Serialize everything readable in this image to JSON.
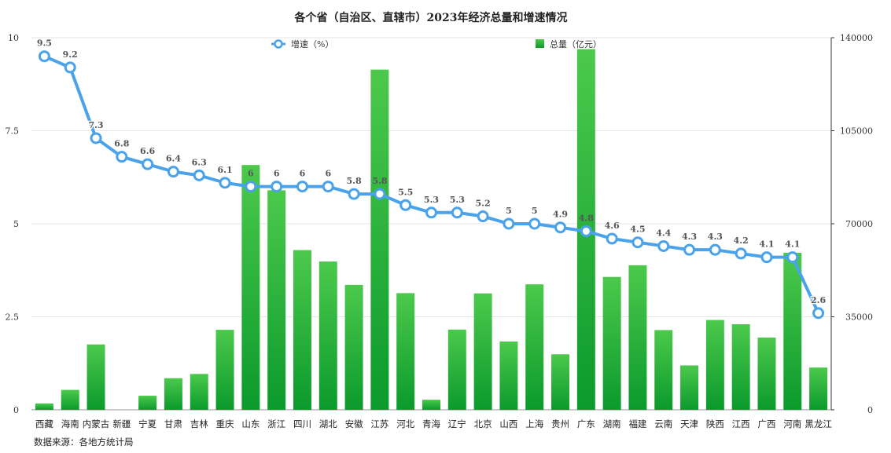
{
  "chart_data": {
    "type": "bar",
    "title": "各个省（自治区、直辖市）2023年经济总量和增速情况",
    "source": "数据来源：各地方统计局",
    "categories": [
      "西藏",
      "海南",
      "内蒙古",
      "新疆",
      "宁夏",
      "甘肃",
      "吉林",
      "重庆",
      "山东",
      "浙江",
      "四川",
      "湖北",
      "安徽",
      "江苏",
      "河北",
      "青海",
      "辽宁",
      "北京",
      "山西",
      "上海",
      "贵州",
      "广东",
      "湖南",
      "福建",
      "云南",
      "天津",
      "陕西",
      "江西",
      "广西",
      "河南",
      "黑龙江"
    ],
    "series": [
      {
        "name": "总量（亿元）",
        "type": "bar",
        "axis": "right",
        "values": [
          2400,
          7500,
          24600,
          0,
          5300,
          11900,
          13500,
          30100,
          92100,
          82600,
          60100,
          55800,
          47000,
          128000,
          43900,
          3800,
          30200,
          43800,
          25700,
          47200,
          20900,
          135700,
          50000,
          54400,
          30000,
          16700,
          33800,
          32200,
          27200,
          59100,
          15900
        ]
      },
      {
        "name": "增速（%）",
        "type": "line",
        "axis": "left",
        "values": [
          9.5,
          9.2,
          7.3,
          6.8,
          6.6,
          6.4,
          6.3,
          6.1,
          6,
          6,
          6,
          6,
          5.8,
          5.8,
          5.5,
          5.3,
          5.3,
          5.2,
          5,
          5,
          4.9,
          4.8,
          4.6,
          4.5,
          4.4,
          4.3,
          4.3,
          4.2,
          4.1,
          4.1,
          2.6
        ]
      }
    ],
    "y_left": {
      "ylim": [
        0,
        10
      ],
      "ticks": [
        "0",
        "2.5",
        "5",
        "7.5",
        "10"
      ]
    },
    "y_right": {
      "ylim": [
        0,
        140000
      ],
      "ticks": [
        "0",
        "35000",
        "70000",
        "105000",
        "140000"
      ]
    },
    "legend": [
      "增速（%）",
      "总量（亿元）"
    ],
    "legend_placement": "top-center",
    "grid": true,
    "colors": {
      "bar_top": "#4cc94c",
      "bar_bottom": "#0b9a2c",
      "line": "#4aa3ea",
      "grid": "#e6e6e6"
    }
  }
}
